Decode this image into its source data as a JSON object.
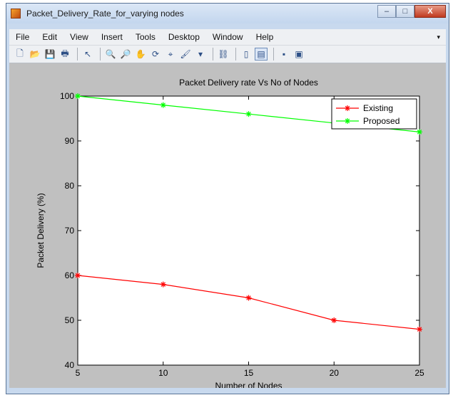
{
  "window": {
    "title": "Packet_Delivery_Rate_for_varying nodes",
    "controls": {
      "minimize": "–",
      "maximize": "□",
      "close": "X"
    }
  },
  "menu": [
    "File",
    "Edit",
    "View",
    "Insert",
    "Tools",
    "Desktop",
    "Window",
    "Help"
  ],
  "menu_end": "▾",
  "toolbar": [
    {
      "icon": "new-figure-icon",
      "glyph": "🗋"
    },
    {
      "icon": "open-file-icon",
      "glyph": "📂"
    },
    {
      "icon": "save-icon",
      "glyph": "💾"
    },
    {
      "icon": "print-icon",
      "glyph": "🖶"
    },
    {
      "sep": true
    },
    {
      "icon": "edit-plot-arrow-icon",
      "glyph": "↖"
    },
    {
      "sep": true
    },
    {
      "icon": "zoom-in-icon",
      "glyph": "🔍"
    },
    {
      "icon": "zoom-out-icon",
      "glyph": "🔎"
    },
    {
      "icon": "pan-hand-icon",
      "glyph": "✋"
    },
    {
      "icon": "rotate-3d-icon",
      "glyph": "⟳"
    },
    {
      "icon": "data-cursor-icon",
      "glyph": "⌖"
    },
    {
      "icon": "brush-icon",
      "glyph": "🖌"
    },
    {
      "icon": "brush-dropdown-icon",
      "glyph": "▾"
    },
    {
      "sep": true
    },
    {
      "icon": "link-plot-icon",
      "glyph": "⛓"
    },
    {
      "sep": true
    },
    {
      "icon": "colorbar-icon",
      "glyph": "▯"
    },
    {
      "icon": "legend-icon",
      "glyph": "▤",
      "pressed": true
    },
    {
      "sep": true
    },
    {
      "icon": "hide-plot-tools-icon",
      "glyph": "▪"
    },
    {
      "icon": "show-plot-tools-icon",
      "glyph": "▣"
    }
  ],
  "colors": {
    "existing": "#ff0000",
    "proposed": "#00ff00"
  },
  "chart_data": {
    "type": "line",
    "title": "Packet Delivery rate Vs No of Nodes",
    "xlabel": "Number of Nodes",
    "ylabel": "Packet Delivery (%)",
    "x": [
      5,
      10,
      15,
      20,
      25
    ],
    "xlim": [
      5,
      25
    ],
    "ylim": [
      40,
      100
    ],
    "xticks": [
      "5",
      "10",
      "15",
      "20",
      "25"
    ],
    "yticks": [
      "40",
      "50",
      "60",
      "70",
      "80",
      "90",
      "100"
    ],
    "legend_position": "top-right",
    "grid": false,
    "series": [
      {
        "name": "Existing",
        "color": "#ff0000",
        "marker": "*",
        "values": [
          60,
          58,
          55,
          50,
          48
        ]
      },
      {
        "name": "Proposed",
        "color": "#00ff00",
        "marker": "*",
        "values": [
          100,
          98,
          96,
          94,
          92
        ]
      }
    ]
  }
}
